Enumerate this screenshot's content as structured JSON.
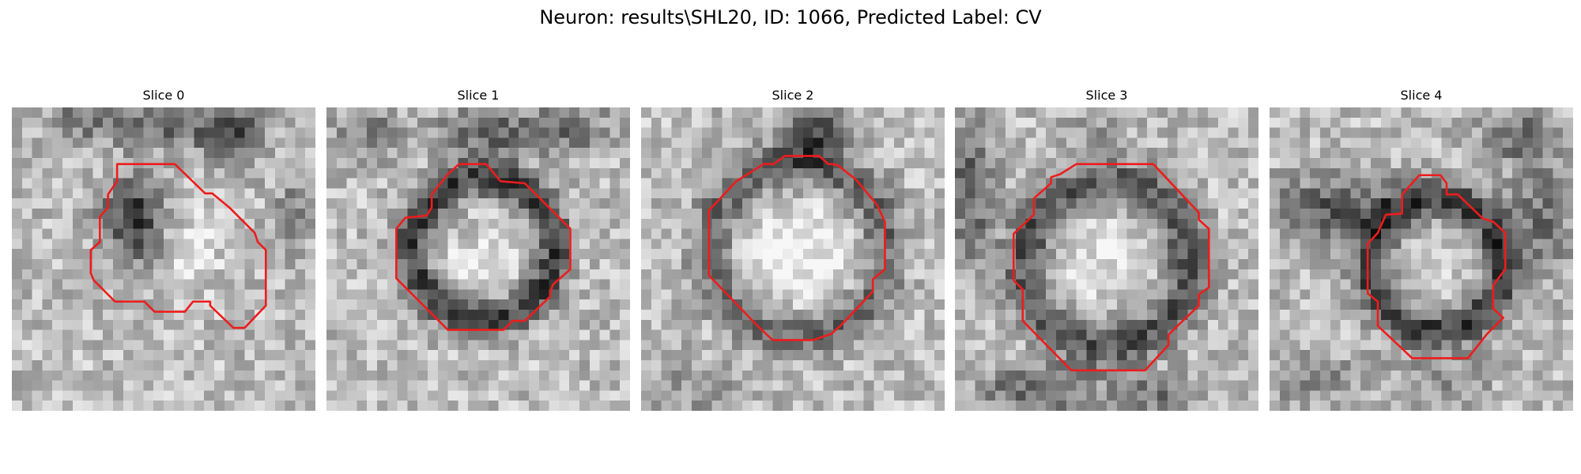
{
  "figure": {
    "title": "Neuron: results\\SHL20, ID: 1066, Predicted Label: CV",
    "contour_color": "#ee1c1c",
    "colormap": "grayscale",
    "grid_size": 30
  },
  "slices": [
    {
      "title": "Slice 0"
    },
    {
      "title": "Slice 1"
    },
    {
      "title": "Slice 2"
    },
    {
      "title": "Slice 3"
    },
    {
      "title": "Slice 4"
    }
  ]
}
